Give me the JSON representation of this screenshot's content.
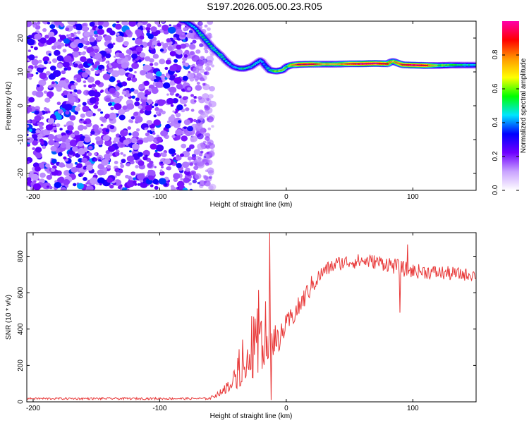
{
  "title": "S197.2026.005.00.23.R05",
  "chart_data": [
    {
      "type": "heatmap",
      "title": "S197.2026.005.00.23.R05",
      "xlabel": "Height of straight line (km)",
      "ylabel": "Frequency (Hz)",
      "xlim": [
        -205,
        150
      ],
      "ylim": [
        -25,
        25
      ],
      "x_ticks": [
        -200,
        -100,
        0,
        100
      ],
      "y_ticks": [
        -20,
        -10,
        0,
        10,
        20
      ],
      "noise_region_x": [
        -205,
        -58
      ],
      "ridge": {
        "x": [
          -205,
          -80,
          -72,
          -65,
          -58,
          -52,
          -47,
          -42,
          -37,
          -33,
          -28,
          -24,
          -20,
          -17,
          -13,
          -8,
          -3,
          0,
          4,
          10,
          20,
          30,
          40,
          50,
          60,
          70,
          80,
          84,
          88,
          92,
          100,
          110,
          120,
          130,
          140,
          150
        ],
        "freq_hz": [
          25,
          25,
          23,
          20,
          17,
          15,
          13,
          11.5,
          11,
          11,
          11.5,
          12.5,
          13.5,
          12,
          10.5,
          10.2,
          10.5,
          11.5,
          12,
          12.2,
          12.3,
          12.3,
          12.3,
          12.4,
          12.4,
          12.5,
          12.4,
          13.2,
          12.6,
          12.1,
          12,
          11.9,
          11.9,
          12,
          12,
          12
        ],
        "amplitude": [
          0.3,
          0.4,
          0.45,
          0.5,
          0.5,
          0.5,
          0.45,
          0.4,
          0.45,
          0.5,
          0.45,
          0.45,
          0.45,
          0.4,
          0.5,
          0.6,
          0.6,
          0.55,
          0.7,
          0.9,
          0.9,
          0.7,
          0.7,
          0.85,
          0.95,
          0.95,
          0.85,
          0.7,
          0.8,
          0.85,
          0.95,
          0.9,
          0.6,
          0.55,
          0.5,
          0.45
        ]
      },
      "colorbar": {
        "label": "Normalized spectral amplitude",
        "range": [
          0,
          1
        ],
        "ticks": [
          "0.0",
          "0.2",
          "0.4",
          "0.6",
          "0.8"
        ],
        "colors": [
          "#ffffff",
          "#c9a3ff",
          "#6f00ff",
          "#0000ff",
          "#00e5ff",
          "#00ff00",
          "#ffff00",
          "#ff9900",
          "#ff0000",
          "#ff00aa"
        ]
      }
    },
    {
      "type": "line",
      "xlabel": "Height of straight line (km)",
      "ylabel": "SNR (10 * v/v)",
      "xlim": [
        -205,
        150
      ],
      "ylim": [
        0,
        930
      ],
      "x_ticks": [
        -200,
        -100,
        0,
        100
      ],
      "y_ticks": [
        0,
        200,
        400,
        600,
        800
      ],
      "series": [
        {
          "name": "SNR",
          "color": "#e83838",
          "x": [
            -205,
            -150,
            -100,
            -65,
            -60,
            -50,
            -40,
            -30,
            -20,
            -15,
            -13,
            -10,
            -5,
            0,
            10,
            20,
            30,
            40,
            50,
            60,
            70,
            80,
            90,
            100,
            110,
            120,
            130,
            140,
            150
          ],
          "mean": [
            18,
            18,
            18,
            18,
            20,
            60,
            130,
            210,
            320,
            370,
            380,
            310,
            360,
            420,
            520,
            640,
            720,
            760,
            770,
            775,
            770,
            760,
            735,
            720,
            715,
            710,
            705,
            700,
            700
          ],
          "noise": [
            6,
            6,
            6,
            6,
            8,
            20,
            60,
            110,
            150,
            150,
            150,
            110,
            70,
            60,
            60,
            55,
            40,
            40,
            40,
            40,
            40,
            45,
            45,
            40,
            40,
            40,
            40,
            35,
            35
          ]
        }
      ],
      "annotations": [
        {
          "x": -13,
          "y": 930,
          "note": "spike"
        },
        {
          "x": -12,
          "y": 10,
          "note": "dip"
        },
        {
          "x": 90,
          "y": 490,
          "note": "dip"
        },
        {
          "x": 96,
          "y": 865,
          "note": "spike"
        }
      ]
    }
  ]
}
